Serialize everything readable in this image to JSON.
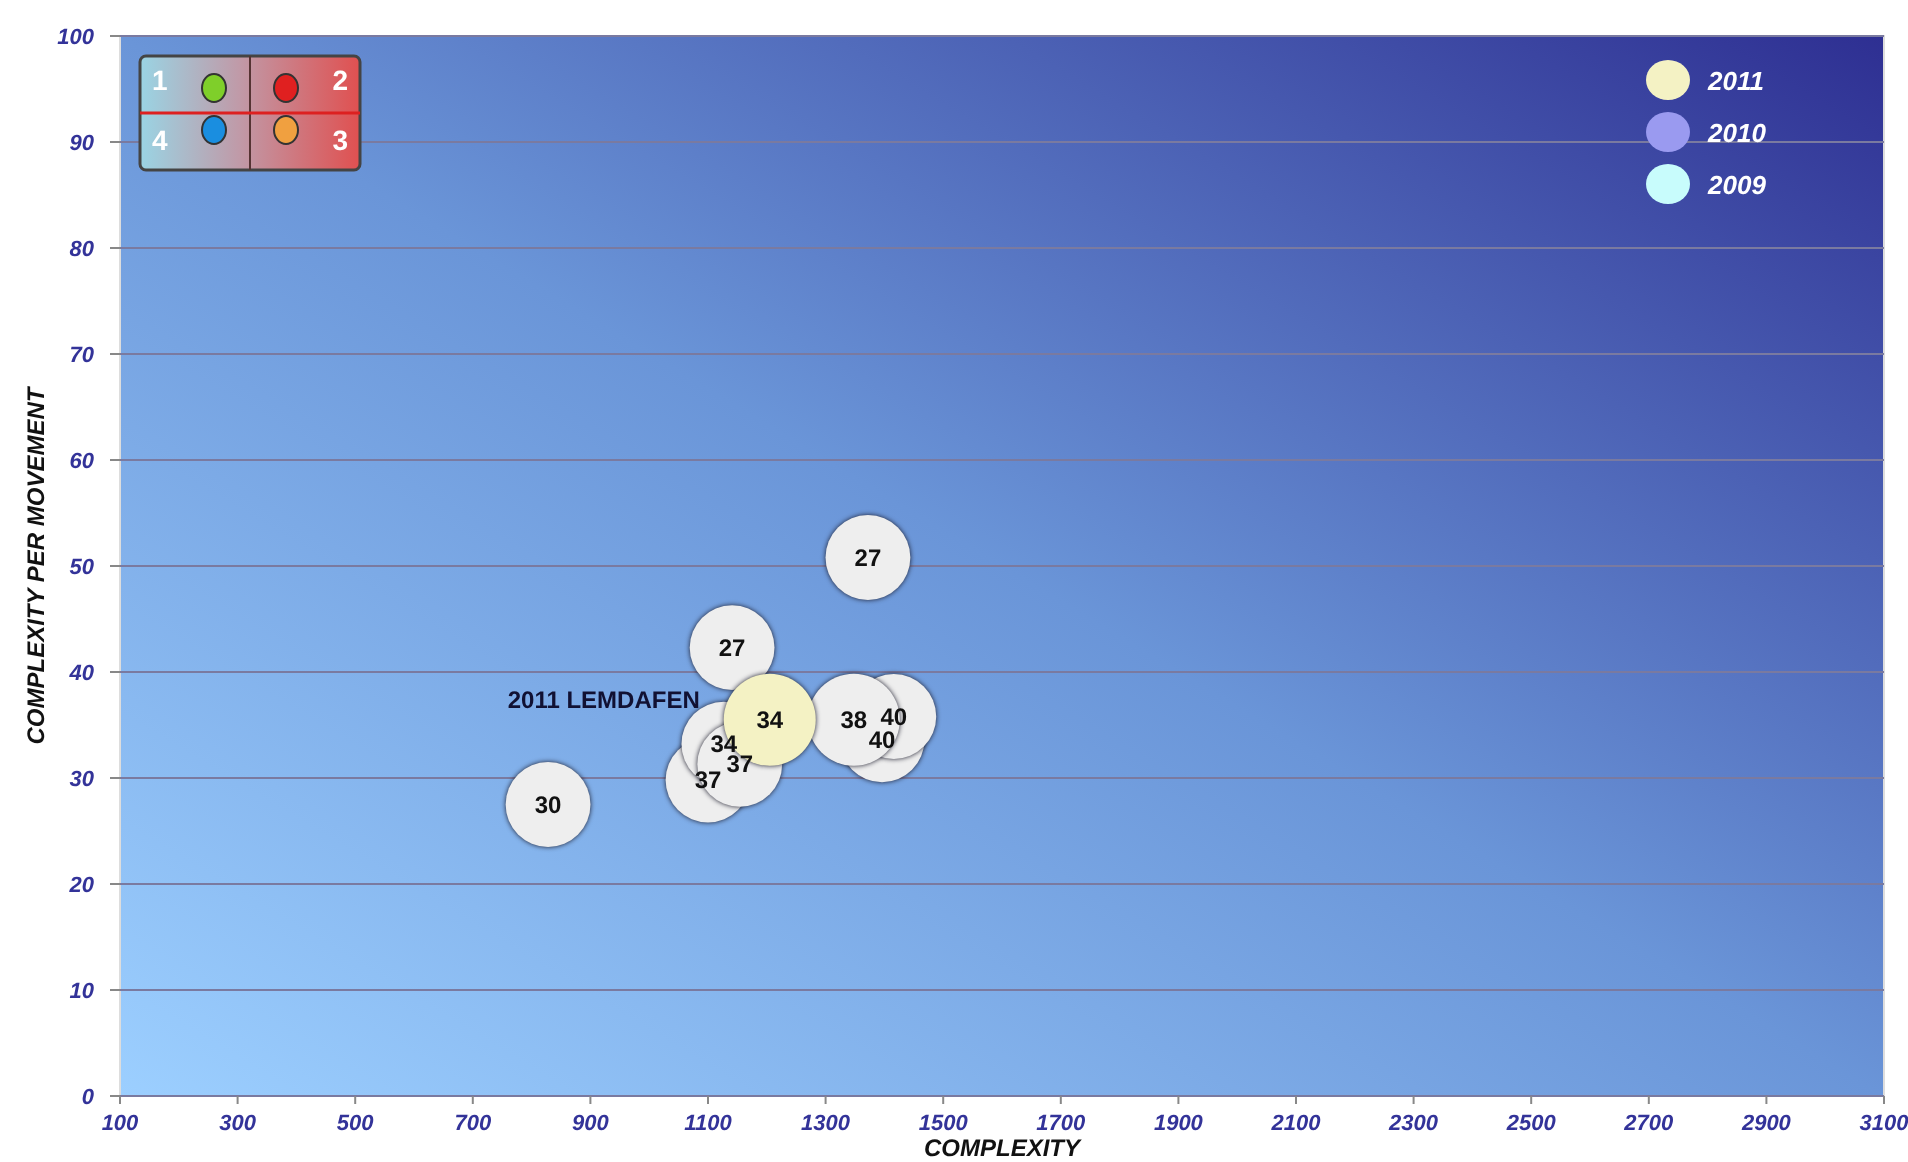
{
  "chart_data": {
    "type": "bubble",
    "xlabel": "COMPLEXITY",
    "ylabel": "COMPLEXITY PER MOVEMENT",
    "xlim": [
      100,
      3100
    ],
    "xticks": [
      100,
      300,
      500,
      700,
      900,
      1100,
      1300,
      1500,
      1700,
      1900,
      2100,
      2300,
      2500,
      2700,
      2900,
      3100
    ],
    "ylim": [
      0,
      100
    ],
    "yticks": [
      0,
      10,
      20,
      30,
      40,
      50,
      60,
      70,
      80,
      90,
      100
    ],
    "grid": "y",
    "legend": "top right",
    "series": [
      {
        "color": "#eeeeee",
        "x": [
          828,
          1372,
          1141,
          1396,
          1416,
          1348,
          1100,
          1127,
          1154
        ],
        "values": [
          27.5,
          50.8,
          42.3,
          33.6,
          35.8,
          35.5,
          29.8,
          33.2,
          31.3
        ],
        "sizes": [
          0.85,
          0.85,
          0.85,
          0.85,
          0.85,
          1,
          0.85,
          0.85,
          0.85
        ]
      },
      {
        "name": "2011",
        "color": "#f4f2c4",
        "x": [
          1205
        ],
        "values": [
          35.5
        ],
        "sizes": [
          1
        ]
      },
      {
        "name": "2010",
        "color": "#9a9af0"
      },
      {
        "name": "2009",
        "color": "#c8fcfc"
      }
    ],
    "annotations": [
      {
        "text": "2011  LEMDAFEN",
        "x": 1086,
        "y": 37.4
      },
      {
        "text": "30",
        "x": 828,
        "y": 27.5
      },
      {
        "text": "27",
        "x": 1372,
        "y": 50.8
      },
      {
        "text": "27",
        "x": 1141,
        "y": 42.3
      },
      {
        "text": "40",
        "x": 1396,
        "y": 33.6
      },
      {
        "text": "40",
        "x": 1416,
        "y": 35.8
      },
      {
        "text": "38",
        "x": 1348,
        "y": 35.5
      },
      {
        "text": "37",
        "x": 1100,
        "y": 29.8
      },
      {
        "text": "34",
        "x": 1127,
        "y": 33.2
      },
      {
        "text": "37",
        "x": 1154,
        "y": 31.3
      },
      {
        "text": "34",
        "x": 1205,
        "y": 35.5
      },
      "1",
      "2",
      "3",
      "4"
    ]
  }
}
